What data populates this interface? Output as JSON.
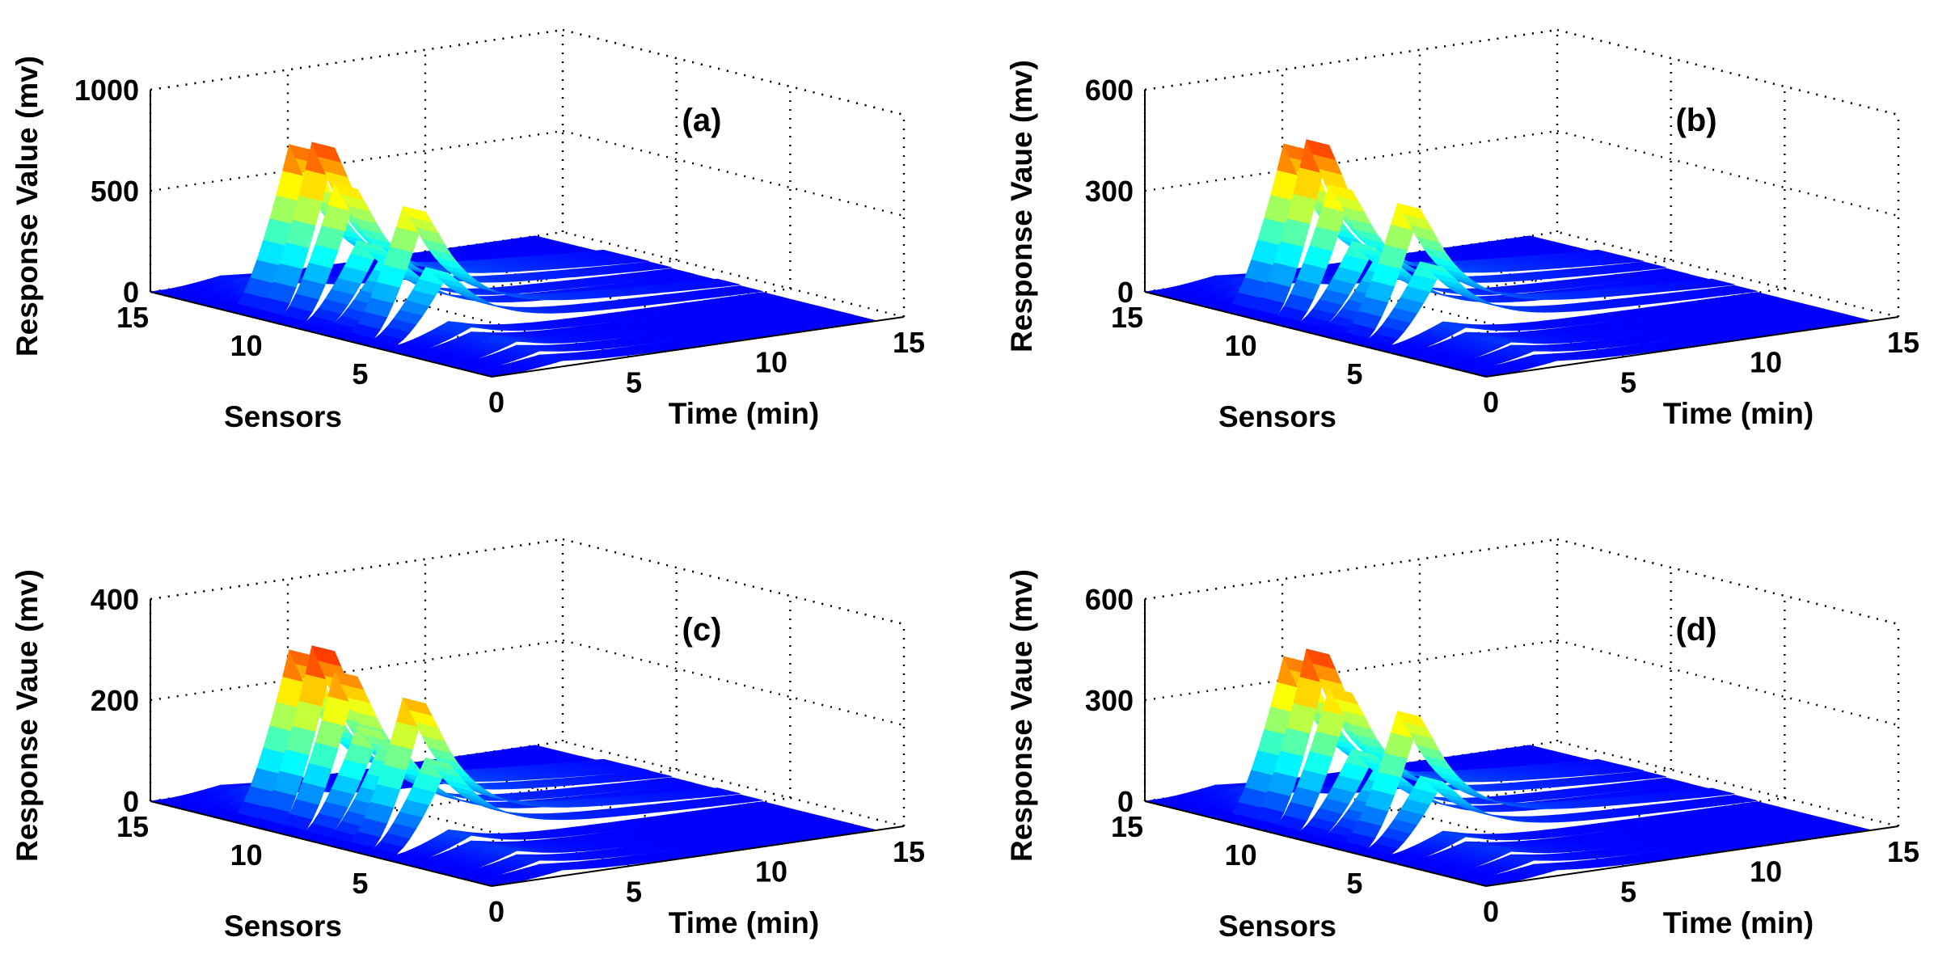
{
  "chart_data": [
    {
      "type": "surface3d",
      "panel_label": "(a)",
      "xlabel": "Time (min)",
      "ylabel": "Sensors",
      "zlabel": "Response Value (mv)",
      "xlim": [
        0,
        15
      ],
      "ylim": [
        0,
        15
      ],
      "zlim": [
        0,
        1000
      ],
      "xticks": [
        "0",
        "5",
        "10",
        "15"
      ],
      "yticks": [
        "5",
        "10",
        "15"
      ],
      "zticks": [
        "0",
        "500",
        "1000"
      ],
      "peak_times_min": [
        1.5,
        2.2,
        3.0
      ],
      "sensor_peaks": [
        30,
        50,
        70,
        60,
        85,
        330,
        610,
        320,
        380,
        640,
        820,
        780,
        100,
        50,
        30
      ]
    },
    {
      "type": "surface3d",
      "panel_label": "(b)",
      "xlabel": "Time (min)",
      "ylabel": "Sensors",
      "zlabel": "Response Vaue (mv)",
      "xlim": [
        0,
        15
      ],
      "ylim": [
        0,
        15
      ],
      "zlim": [
        0,
        600
      ],
      "xticks": [
        "0",
        "5",
        "10",
        "15"
      ],
      "yticks": [
        "5",
        "10",
        "15"
      ],
      "zticks": [
        "0",
        "300",
        "600"
      ],
      "peak_times_min": [
        1.5,
        2.2,
        3.0
      ],
      "sensor_peaks": [
        18,
        30,
        40,
        35,
        50,
        215,
        375,
        190,
        225,
        380,
        500,
        470,
        60,
        30,
        18
      ]
    },
    {
      "type": "surface3d",
      "panel_label": "(c)",
      "xlabel": "Time (min)",
      "ylabel": "Sensors",
      "zlabel": "Response Vaue (mv)",
      "xlim": [
        0,
        15
      ],
      "ylim": [
        0,
        15
      ],
      "zlim": [
        0,
        400
      ],
      "xticks": [
        "0",
        "5",
        "10",
        "15"
      ],
      "yticks": [
        "5",
        "10",
        "15"
      ],
      "zticks": [
        "0",
        "200",
        "400"
      ],
      "peak_times_min": [
        1.5,
        2.2,
        3.0
      ],
      "sensor_peaks": [
        12,
        20,
        28,
        25,
        36,
        170,
        280,
        175,
        200,
        300,
        340,
        320,
        45,
        22,
        12
      ]
    },
    {
      "type": "surface3d",
      "panel_label": "(d)",
      "xlabel": "Time (min)",
      "ylabel": "Sensors",
      "zlabel": "Response Vaue (mv)",
      "xlim": [
        0,
        15
      ],
      "ylim": [
        0,
        15
      ],
      "zlim": [
        0,
        600
      ],
      "xticks": [
        "0",
        "5",
        "10",
        "15"
      ],
      "yticks": [
        "5",
        "10",
        "15"
      ],
      "zticks": [
        "0",
        "300",
        "600"
      ],
      "peak_times_min": [
        1.5,
        2.2,
        3.0
      ],
      "sensor_peaks": [
        18,
        30,
        40,
        35,
        50,
        200,
        380,
        190,
        230,
        400,
        500,
        460,
        60,
        30,
        18
      ]
    }
  ]
}
